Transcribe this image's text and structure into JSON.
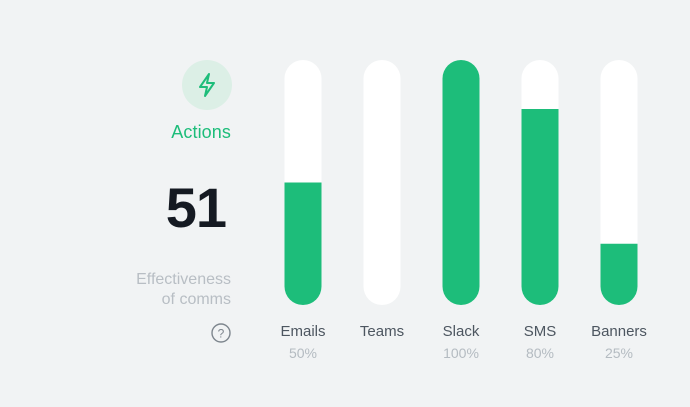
{
  "summary": {
    "icon": "lightning-bolt-icon",
    "title": "Actions",
    "value": "51",
    "caption_line1": "Effectiveness",
    "caption_line2": "of comms",
    "help_icon": "question-mark-icon"
  },
  "colors": {
    "accent": "#1dbd7a",
    "track": "#ffffff",
    "background": "#f1f3f4"
  },
  "chart_data": {
    "type": "bar",
    "categories": [
      "Emails",
      "Teams",
      "Slack",
      "SMS",
      "Banners"
    ],
    "values": [
      50,
      0,
      100,
      80,
      25
    ],
    "value_labels": [
      "50%",
      "",
      "100%",
      "80%",
      "25%"
    ],
    "ylim": [
      0,
      100
    ],
    "grid": false
  }
}
